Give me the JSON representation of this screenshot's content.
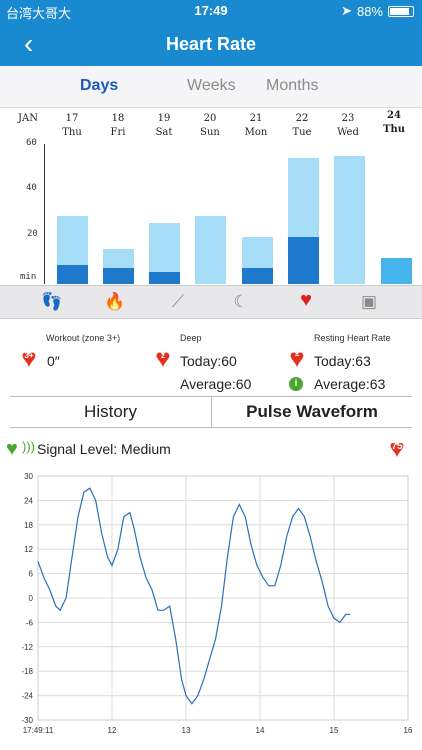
{
  "status": {
    "carrier": "台湾大哥大",
    "time": "17:49",
    "battery": "88%"
  },
  "nav": {
    "title": "Heart Rate",
    "back_icon": "chevron-left-icon"
  },
  "tabs": [
    {
      "label": "Days",
      "active": true
    },
    {
      "label": "Weeks",
      "active": false
    },
    {
      "label": "Months",
      "active": false
    }
  ],
  "days": [
    {
      "num": "JAN",
      "name": ""
    },
    {
      "num": "17",
      "name": "Thu"
    },
    {
      "num": "18",
      "name": "Fri"
    },
    {
      "num": "19",
      "name": "Sat"
    },
    {
      "num": "20",
      "name": "Sun"
    },
    {
      "num": "21",
      "name": "Mon"
    },
    {
      "num": "22",
      "name": "Tue"
    },
    {
      "num": "23",
      "name": "Wed"
    },
    {
      "num": "24",
      "name": "Thu",
      "bold": true
    }
  ],
  "bar_chart": {
    "y_labels": [
      "60",
      "40",
      "20",
      "min"
    ],
    "ylim": [
      0,
      60
    ],
    "bars": [
      {
        "total": 29,
        "dark": 8
      },
      {
        "total": 15,
        "dark": 7
      },
      {
        "total": 26,
        "dark": 5
      },
      {
        "total": 29,
        "dark": 0
      },
      {
        "total": 20,
        "dark": 7
      },
      {
        "total": 54,
        "dark": 20
      },
      {
        "total": 55,
        "dark": 0
      },
      {
        "total": 11,
        "dark": 0,
        "today": true
      }
    ],
    "colors": {
      "light": "#a5dcf6",
      "dark": "#1e78cc",
      "today": "#46b4ec"
    }
  },
  "icons": [
    "footsteps-icon",
    "flame-icon",
    "workout-icon",
    "moon-icon",
    "heart-icon",
    "scale-icon"
  ],
  "stats": {
    "workout": {
      "title": "Workout (zone 3+)",
      "badge": "3+",
      "value": "0″"
    },
    "deep": {
      "title": "Deep",
      "today": "Today:60",
      "average": "Average:60"
    },
    "resting": {
      "title": "Resting Heart Rate",
      "today": "Today:63",
      "average": "Average:63",
      "info": "i"
    }
  },
  "segments": {
    "left": "History",
    "right": "Pulse Waveform"
  },
  "signal": {
    "label": "Signal Level: Medium",
    "bpm": "75"
  },
  "chart_data": {
    "type": "line",
    "ylim": [
      -30,
      30
    ],
    "xlim": [
      11,
      16
    ],
    "y_ticks": [
      "30",
      "24",
      "18",
      "12",
      "6",
      "0",
      "-6",
      "-12",
      "-18",
      "-24",
      "-30"
    ],
    "x_ticks": [
      "17:49:11",
      "12",
      "13",
      "14",
      "15",
      "16"
    ],
    "x": [
      11.0,
      11.08,
      11.16,
      11.24,
      11.3,
      11.38,
      11.46,
      11.54,
      11.62,
      11.7,
      11.78,
      11.86,
      11.94,
      12.0,
      12.08,
      12.16,
      12.24,
      12.3,
      12.38,
      12.46,
      12.54,
      12.62,
      12.7,
      12.78,
      12.86,
      12.94,
      13.0,
      13.08,
      13.16,
      13.24,
      13.32,
      13.4,
      13.48,
      13.56,
      13.64,
      13.72,
      13.8,
      13.88,
      13.96,
      14.04,
      14.12,
      14.2,
      14.28,
      14.36,
      14.44,
      14.52,
      14.6,
      14.68,
      14.76,
      14.84,
      14.92,
      15.0,
      15.08,
      15.16,
      15.22
    ],
    "y": [
      9,
      5,
      2,
      -2,
      -3,
      0,
      10,
      20,
      26,
      27,
      24,
      16,
      10,
      8,
      12,
      20,
      21,
      17,
      10,
      5,
      2,
      -3,
      -3,
      -2,
      -10,
      -20,
      -24,
      -26,
      -24,
      -20,
      -15,
      -10,
      -2,
      10,
      20,
      23,
      20,
      13,
      8,
      5,
      3,
      3,
      8,
      15,
      20,
      22,
      20,
      15,
      9,
      4,
      -2,
      -5,
      -6,
      -4,
      -4
    ],
    "color": "#2a6fb8"
  }
}
